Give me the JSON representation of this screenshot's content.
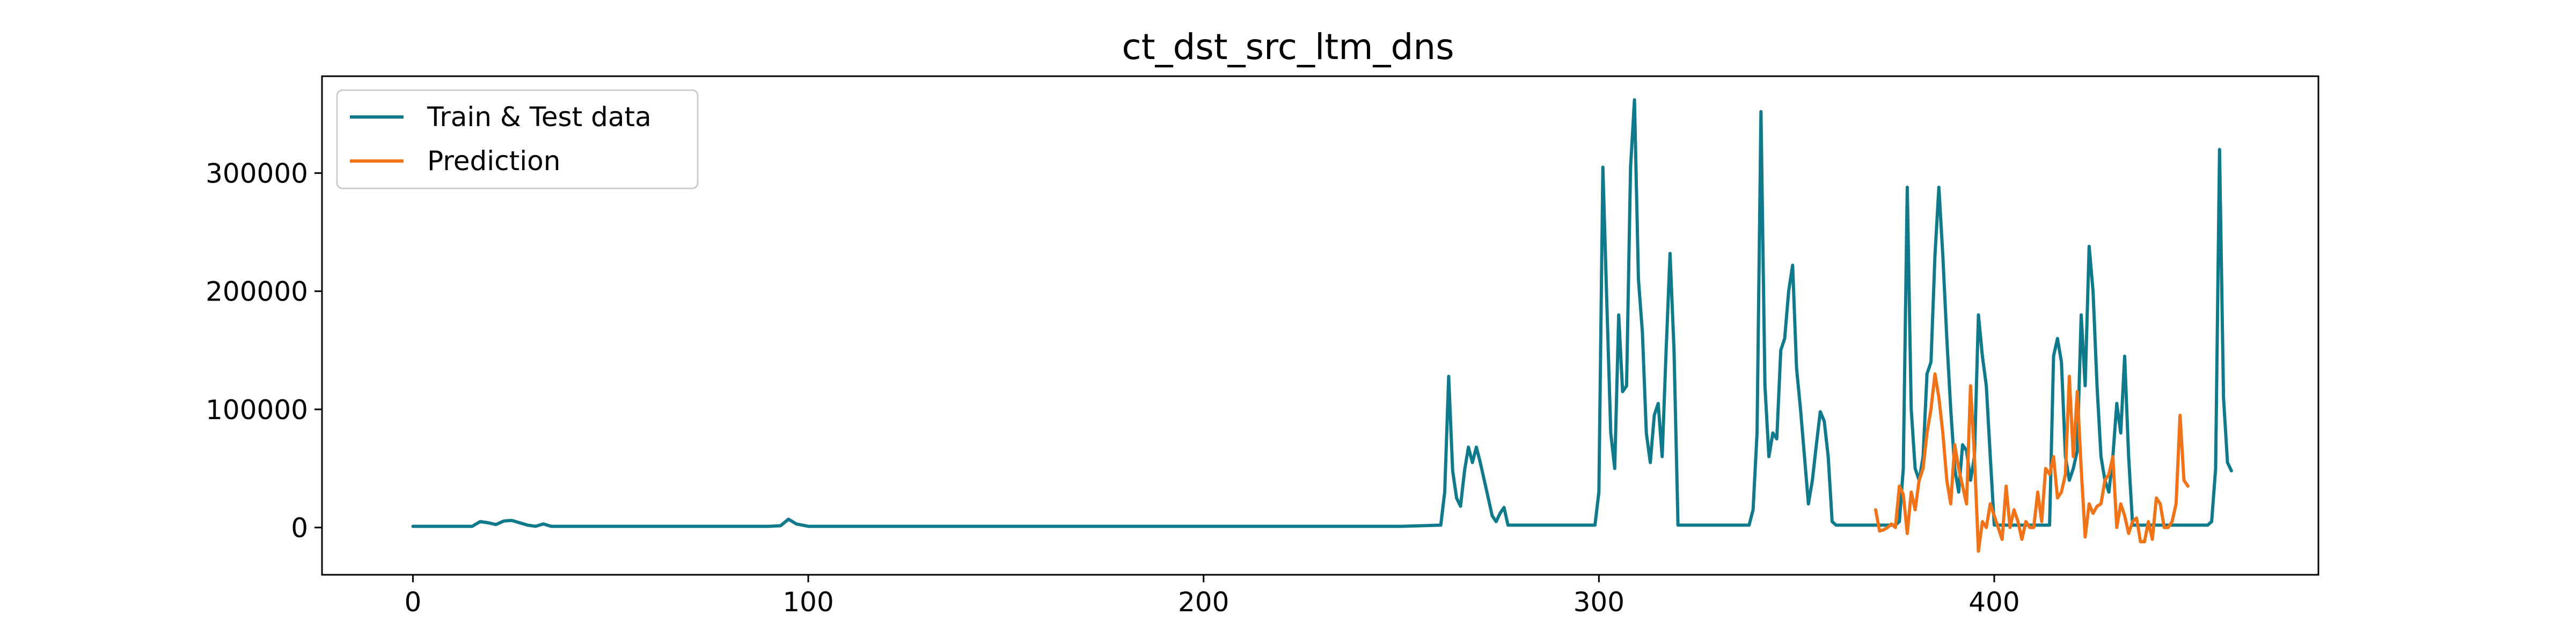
{
  "chart_data": {
    "type": "line",
    "title": "ct_dst_src_ltm_dns",
    "xlabel": "",
    "ylabel": "",
    "xlim": [
      -23,
      482
    ],
    "ylim": [
      -40000,
      382000
    ],
    "x_ticks": [
      0,
      100,
      200,
      300,
      400
    ],
    "y_ticks": [
      0,
      100000,
      200000,
      300000
    ],
    "x_tick_labels": [
      "0",
      "100",
      "200",
      "300",
      "400"
    ],
    "y_tick_labels": [
      "0",
      "100000",
      "200000",
      "300000"
    ],
    "grid": false,
    "legend_position": "upper left",
    "series": [
      {
        "name": "Train & Test data",
        "color": "#0f7a8c",
        "points": [
          [
            0,
            1000
          ],
          [
            5,
            1000
          ],
          [
            10,
            1000
          ],
          [
            15,
            1000
          ],
          [
            17,
            5000
          ],
          [
            19,
            4000
          ],
          [
            21,
            2500
          ],
          [
            23,
            5500
          ],
          [
            25,
            6000
          ],
          [
            27,
            4000
          ],
          [
            29,
            2000
          ],
          [
            31,
            1000
          ],
          [
            33,
            3000
          ],
          [
            35,
            1000
          ],
          [
            40,
            1000
          ],
          [
            50,
            1000
          ],
          [
            60,
            1000
          ],
          [
            70,
            1000
          ],
          [
            80,
            1000
          ],
          [
            90,
            1000
          ],
          [
            93,
            1500
          ],
          [
            95,
            7000
          ],
          [
            97,
            3000
          ],
          [
            100,
            1000
          ],
          [
            120,
            1000
          ],
          [
            140,
            1000
          ],
          [
            160,
            1000
          ],
          [
            180,
            1000
          ],
          [
            200,
            1000
          ],
          [
            220,
            1000
          ],
          [
            240,
            1000
          ],
          [
            250,
            1000
          ],
          [
            255,
            1500
          ],
          [
            260,
            2000
          ],
          [
            261,
            30000
          ],
          [
            262,
            128000
          ],
          [
            263,
            48000
          ],
          [
            264,
            25000
          ],
          [
            265,
            18000
          ],
          [
            266,
            48000
          ],
          [
            267,
            68000
          ],
          [
            268,
            55000
          ],
          [
            269,
            68000
          ],
          [
            270,
            55000
          ],
          [
            271,
            40000
          ],
          [
            272,
            25000
          ],
          [
            273,
            10000
          ],
          [
            274,
            5000
          ],
          [
            275,
            12000
          ],
          [
            276,
            17000
          ],
          [
            277,
            2000
          ],
          [
            280,
            2000
          ],
          [
            285,
            2000
          ],
          [
            290,
            2000
          ],
          [
            295,
            2000
          ],
          [
            299,
            2000
          ],
          [
            300,
            30000
          ],
          [
            301,
            305000
          ],
          [
            302,
            190000
          ],
          [
            303,
            80000
          ],
          [
            304,
            50000
          ],
          [
            305,
            180000
          ],
          [
            306,
            115000
          ],
          [
            307,
            120000
          ],
          [
            308,
            305000
          ],
          [
            309,
            362000
          ],
          [
            310,
            210000
          ],
          [
            311,
            165000
          ],
          [
            312,
            80000
          ],
          [
            313,
            55000
          ],
          [
            314,
            95000
          ],
          [
            315,
            105000
          ],
          [
            316,
            60000
          ],
          [
            317,
            150000
          ],
          [
            318,
            232000
          ],
          [
            319,
            150000
          ],
          [
            320,
            2000
          ],
          [
            325,
            2000
          ],
          [
            330,
            2000
          ],
          [
            335,
            2000
          ],
          [
            338,
            2000
          ],
          [
            339,
            15000
          ],
          [
            340,
            80000
          ],
          [
            341,
            352000
          ],
          [
            342,
            120000
          ],
          [
            343,
            60000
          ],
          [
            344,
            80000
          ],
          [
            345,
            75000
          ],
          [
            346,
            150000
          ],
          [
            347,
            160000
          ],
          [
            348,
            200000
          ],
          [
            349,
            222000
          ],
          [
            350,
            135000
          ],
          [
            351,
            100000
          ],
          [
            352,
            60000
          ],
          [
            353,
            20000
          ],
          [
            354,
            40000
          ],
          [
            355,
            70000
          ],
          [
            356,
            98000
          ],
          [
            357,
            90000
          ],
          [
            358,
            60000
          ],
          [
            359,
            5000
          ],
          [
            360,
            2000
          ],
          [
            370,
            2000
          ],
          [
            375,
            2000
          ],
          [
            376,
            5000
          ],
          [
            377,
            50000
          ],
          [
            378,
            288000
          ],
          [
            379,
            100000
          ],
          [
            380,
            50000
          ],
          [
            381,
            40000
          ],
          [
            382,
            60000
          ],
          [
            383,
            130000
          ],
          [
            384,
            140000
          ],
          [
            385,
            230000
          ],
          [
            386,
            288000
          ],
          [
            387,
            230000
          ],
          [
            388,
            160000
          ],
          [
            389,
            100000
          ],
          [
            390,
            50000
          ],
          [
            391,
            30000
          ],
          [
            392,
            70000
          ],
          [
            393,
            65000
          ],
          [
            394,
            40000
          ],
          [
            395,
            60000
          ],
          [
            396,
            180000
          ],
          [
            397,
            145000
          ],
          [
            398,
            120000
          ],
          [
            399,
            60000
          ],
          [
            400,
            2000
          ],
          [
            405,
            2000
          ],
          [
            410,
            2000
          ],
          [
            414,
            2000
          ],
          [
            415,
            145000
          ],
          [
            416,
            160000
          ],
          [
            417,
            140000
          ],
          [
            418,
            60000
          ],
          [
            419,
            40000
          ],
          [
            420,
            50000
          ],
          [
            421,
            65000
          ],
          [
            422,
            180000
          ],
          [
            423,
            120000
          ],
          [
            424,
            238000
          ],
          [
            425,
            200000
          ],
          [
            426,
            120000
          ],
          [
            427,
            60000
          ],
          [
            428,
            40000
          ],
          [
            429,
            30000
          ],
          [
            430,
            60000
          ],
          [
            431,
            105000
          ],
          [
            432,
            80000
          ],
          [
            433,
            145000
          ],
          [
            434,
            60000
          ],
          [
            435,
            2000
          ],
          [
            440,
            2000
          ],
          [
            445,
            2000
          ],
          [
            450,
            2000
          ],
          [
            454,
            2000
          ],
          [
            455,
            5000
          ],
          [
            456,
            50000
          ],
          [
            457,
            320000
          ],
          [
            458,
            110000
          ],
          [
            459,
            55000
          ],
          [
            460,
            48000
          ]
        ]
      },
      {
        "name": "Prediction",
        "color": "#f07318",
        "points": [
          [
            370,
            15000
          ],
          [
            371,
            -3000
          ],
          [
            372,
            -2000
          ],
          [
            373,
            0
          ],
          [
            374,
            3000
          ],
          [
            375,
            0
          ],
          [
            376,
            35000
          ],
          [
            377,
            28000
          ],
          [
            378,
            -5000
          ],
          [
            379,
            30000
          ],
          [
            380,
            15000
          ],
          [
            381,
            40000
          ],
          [
            382,
            50000
          ],
          [
            383,
            80000
          ],
          [
            384,
            100000
          ],
          [
            385,
            130000
          ],
          [
            386,
            110000
          ],
          [
            387,
            80000
          ],
          [
            388,
            40000
          ],
          [
            389,
            20000
          ],
          [
            390,
            70000
          ],
          [
            391,
            50000
          ],
          [
            392,
            35000
          ],
          [
            393,
            20000
          ],
          [
            394,
            120000
          ],
          [
            395,
            60000
          ],
          [
            396,
            -20000
          ],
          [
            397,
            5000
          ],
          [
            398,
            0
          ],
          [
            399,
            20000
          ],
          [
            400,
            10000
          ],
          [
            401,
            0
          ],
          [
            402,
            -10000
          ],
          [
            403,
            35000
          ],
          [
            404,
            0
          ],
          [
            405,
            15000
          ],
          [
            406,
            5000
          ],
          [
            407,
            -10000
          ],
          [
            408,
            5000
          ],
          [
            409,
            0
          ],
          [
            410,
            0
          ],
          [
            411,
            30000
          ],
          [
            412,
            5000
          ],
          [
            413,
            50000
          ],
          [
            414,
            45000
          ],
          [
            415,
            60000
          ],
          [
            416,
            25000
          ],
          [
            417,
            30000
          ],
          [
            418,
            45000
          ],
          [
            419,
            128000
          ],
          [
            420,
            60000
          ],
          [
            421,
            115000
          ],
          [
            422,
            50000
          ],
          [
            423,
            -8000
          ],
          [
            424,
            20000
          ],
          [
            425,
            12000
          ],
          [
            426,
            18000
          ],
          [
            427,
            20000
          ],
          [
            428,
            40000
          ],
          [
            429,
            45000
          ],
          [
            430,
            60000
          ],
          [
            431,
            0
          ],
          [
            432,
            20000
          ],
          [
            433,
            10000
          ],
          [
            434,
            -5000
          ],
          [
            435,
            5000
          ],
          [
            436,
            8000
          ],
          [
            437,
            -12000
          ],
          [
            438,
            -12000
          ],
          [
            439,
            5000
          ],
          [
            440,
            -10000
          ],
          [
            441,
            25000
          ],
          [
            442,
            20000
          ],
          [
            443,
            0
          ],
          [
            444,
            0
          ],
          [
            445,
            5000
          ],
          [
            446,
            20000
          ],
          [
            447,
            95000
          ],
          [
            448,
            40000
          ],
          [
            449,
            35000
          ]
        ]
      }
    ]
  }
}
